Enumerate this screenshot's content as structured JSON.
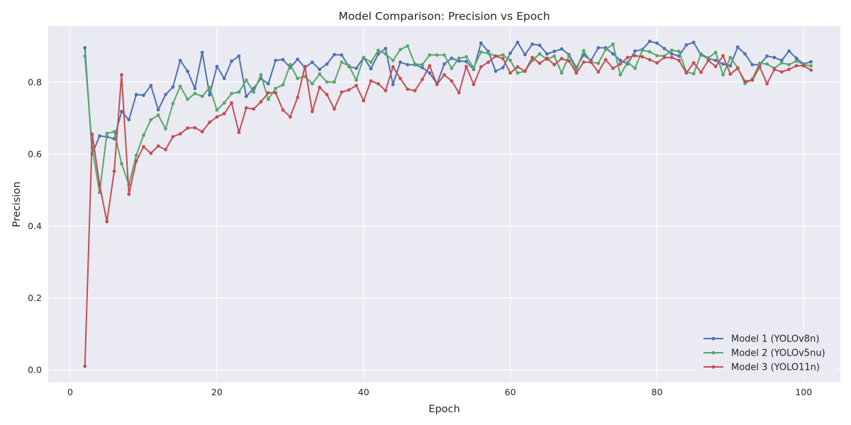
{
  "chart_data": {
    "type": "line",
    "title": "Model Comparison: Precision vs Epoch",
    "xlabel": "Epoch",
    "ylabel": "Precision",
    "xlim": [
      -3,
      105
    ],
    "ylim": [
      -0.035,
      0.955
    ],
    "xticks": [
      0,
      20,
      40,
      60,
      80,
      100
    ],
    "yticks": [
      0.0,
      0.2,
      0.4,
      0.6,
      0.8
    ],
    "grid": true,
    "legend_position": "lower-right",
    "x": [
      2,
      3,
      4,
      5,
      6,
      7,
      8,
      9,
      10,
      11,
      12,
      13,
      14,
      15,
      16,
      17,
      18,
      19,
      20,
      21,
      22,
      23,
      24,
      25,
      26,
      27,
      28,
      29,
      30,
      31,
      32,
      33,
      34,
      35,
      36,
      37,
      38,
      39,
      40,
      41,
      42,
      43,
      44,
      45,
      46,
      47,
      48,
      49,
      50,
      51,
      52,
      53,
      54,
      55,
      56,
      57,
      58,
      59,
      60,
      61,
      62,
      63,
      64,
      65,
      66,
      67,
      68,
      69,
      70,
      71,
      72,
      73,
      74,
      75,
      76,
      77,
      78,
      79,
      80,
      81,
      82,
      83,
      84,
      85,
      86,
      87,
      88,
      89,
      90,
      91,
      92,
      93,
      94,
      95,
      96,
      97,
      98,
      99,
      100,
      101
    ],
    "series": [
      {
        "name": "Model 1 (YOLOv8n)",
        "color": "#4c72b0",
        "values": [
          0.895,
          0.6,
          0.65,
          0.648,
          0.642,
          0.718,
          0.695,
          0.765,
          0.763,
          0.79,
          0.723,
          0.765,
          0.786,
          0.86,
          0.83,
          0.782,
          0.882,
          0.764,
          0.843,
          0.81,
          0.858,
          0.872,
          0.76,
          0.782,
          0.81,
          0.795,
          0.86,
          0.862,
          0.84,
          0.863,
          0.84,
          0.855,
          0.835,
          0.85,
          0.876,
          0.875,
          0.843,
          0.838,
          0.868,
          0.837,
          0.878,
          0.893,
          0.793,
          0.855,
          0.848,
          0.848,
          0.84,
          0.825,
          0.795,
          0.85,
          0.866,
          0.858,
          0.857,
          0.835,
          0.908,
          0.885,
          0.83,
          0.84,
          0.88,
          0.91,
          0.876,
          0.905,
          0.902,
          0.878,
          0.885,
          0.892,
          0.876,
          0.84,
          0.875,
          0.86,
          0.895,
          0.895,
          0.878,
          0.86,
          0.85,
          0.886,
          0.89,
          0.913,
          0.908,
          0.893,
          0.878,
          0.872,
          0.903,
          0.91,
          0.875,
          0.865,
          0.86,
          0.85,
          0.845,
          0.897,
          0.878,
          0.848,
          0.848,
          0.872,
          0.868,
          0.86,
          0.886,
          0.866,
          0.85,
          0.856
        ]
      },
      {
        "name": "Model 2 (YOLOv5nu)",
        "color": "#55a868",
        "values": [
          0.872,
          0.618,
          0.493,
          0.657,
          0.662,
          0.573,
          0.515,
          0.596,
          0.652,
          0.695,
          0.708,
          0.67,
          0.74,
          0.788,
          0.752,
          0.768,
          0.76,
          0.785,
          0.722,
          0.742,
          0.768,
          0.772,
          0.805,
          0.772,
          0.82,
          0.752,
          0.782,
          0.792,
          0.848,
          0.81,
          0.815,
          0.795,
          0.822,
          0.8,
          0.8,
          0.855,
          0.845,
          0.805,
          0.868,
          0.855,
          0.888,
          0.878,
          0.86,
          0.89,
          0.9,
          0.85,
          0.848,
          0.875,
          0.875,
          0.875,
          0.838,
          0.866,
          0.87,
          0.84,
          0.883,
          0.88,
          0.872,
          0.875,
          0.86,
          0.825,
          0.83,
          0.86,
          0.878,
          0.863,
          0.872,
          0.825,
          0.873,
          0.832,
          0.887,
          0.855,
          0.852,
          0.89,
          0.905,
          0.82,
          0.855,
          0.838,
          0.888,
          0.884,
          0.873,
          0.872,
          0.888,
          0.885,
          0.828,
          0.823,
          0.878,
          0.867,
          0.882,
          0.82,
          0.868,
          0.84,
          0.796,
          0.808,
          0.852,
          0.85,
          0.838,
          0.853,
          0.848,
          0.858,
          0.848,
          0.845
        ]
      },
      {
        "name": "Model 3 (YOLO11n)",
        "color": "#c44e52",
        "values": [
          0.01,
          0.655,
          0.515,
          0.412,
          0.552,
          0.82,
          0.488,
          0.58,
          0.62,
          0.602,
          0.622,
          0.612,
          0.648,
          0.656,
          0.672,
          0.673,
          0.662,
          0.688,
          0.703,
          0.712,
          0.742,
          0.66,
          0.728,
          0.725,
          0.745,
          0.77,
          0.77,
          0.722,
          0.703,
          0.757,
          0.843,
          0.718,
          0.785,
          0.765,
          0.725,
          0.772,
          0.778,
          0.79,
          0.748,
          0.803,
          0.795,
          0.776,
          0.842,
          0.81,
          0.78,
          0.776,
          0.807,
          0.845,
          0.793,
          0.82,
          0.803,
          0.77,
          0.843,
          0.793,
          0.842,
          0.855,
          0.872,
          0.865,
          0.825,
          0.842,
          0.83,
          0.868,
          0.852,
          0.866,
          0.848,
          0.865,
          0.858,
          0.825,
          0.855,
          0.855,
          0.828,
          0.862,
          0.838,
          0.85,
          0.868,
          0.873,
          0.87,
          0.862,
          0.853,
          0.868,
          0.868,
          0.86,
          0.825,
          0.853,
          0.827,
          0.86,
          0.843,
          0.873,
          0.822,
          0.838,
          0.802,
          0.805,
          0.842,
          0.795,
          0.835,
          0.828,
          0.835,
          0.845,
          0.845,
          0.833
        ]
      }
    ]
  }
}
